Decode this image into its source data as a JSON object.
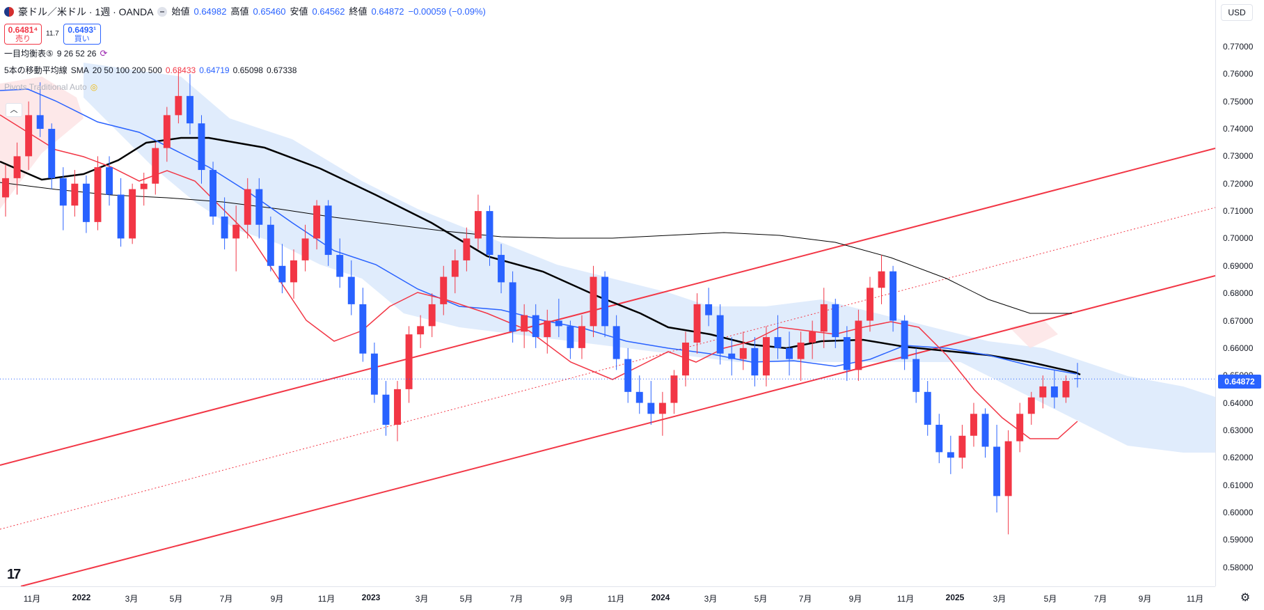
{
  "header": {
    "symbol_title": "豪ドル／米ドル · 1週 · OANDA",
    "ohlc": [
      {
        "label": "始値",
        "value": "0.64982"
      },
      {
        "label": "高値",
        "value": "0.65460"
      },
      {
        "label": "安値",
        "value": "0.64562"
      },
      {
        "label": "終値",
        "value": "0.64872"
      }
    ],
    "change": "−0.00059 (−0.09%)"
  },
  "trade": {
    "sell_price": "0.6481⁴",
    "sell_label": "売り",
    "spread": "11.7",
    "buy_price": "0.6493¹",
    "buy_label": "買い"
  },
  "indicators": {
    "ichimoku": {
      "name": "一目均衡表⑤",
      "params": "9 26 52 26"
    },
    "sma": {
      "name": "5本の移動平均線",
      "type": "SMA",
      "periods": "20 50 100 200 500",
      "v1": "0.63433",
      "v2": "0.64719",
      "v3": "0.65098",
      "v4": "0.67338"
    },
    "pivots": {
      "name": "Pivots Traditional Auto"
    }
  },
  "price_scale": {
    "currency": "USD",
    "last_price": "0.64872",
    "ticks": [
      "0.77000",
      "0.76000",
      "0.75000",
      "0.74000",
      "0.73000",
      "0.72000",
      "0.71000",
      "0.70000",
      "0.69000",
      "0.68000",
      "0.67000",
      "0.66000",
      "0.65000",
      "0.64000",
      "0.63000",
      "0.62000",
      "0.61000",
      "0.60000",
      "0.59000",
      "0.58000"
    ]
  },
  "time_scale": {
    "labels": [
      {
        "t": "11月",
        "year": false
      },
      {
        "t": "2022",
        "year": true
      },
      {
        "t": "3月",
        "year": false
      },
      {
        "t": "5月",
        "year": false
      },
      {
        "t": "7月",
        "year": false
      },
      {
        "t": "9月",
        "year": false
      },
      {
        "t": "11月",
        "year": false
      },
      {
        "t": "2023",
        "year": true
      },
      {
        "t": "3月",
        "year": false
      },
      {
        "t": "5月",
        "year": false
      },
      {
        "t": "7月",
        "year": false
      },
      {
        "t": "9月",
        "year": false
      },
      {
        "t": "11月",
        "year": false
      },
      {
        "t": "2024",
        "year": true
      },
      {
        "t": "3月",
        "year": false
      },
      {
        "t": "5月",
        "year": false
      },
      {
        "t": "7月",
        "year": false
      },
      {
        "t": "9月",
        "year": false
      },
      {
        "t": "11月",
        "year": false
      },
      {
        "t": "2025",
        "year": true
      },
      {
        "t": "3月",
        "year": false
      },
      {
        "t": "5月",
        "year": false
      },
      {
        "t": "7月",
        "year": false
      },
      {
        "t": "9月",
        "year": false
      },
      {
        "t": "11月",
        "year": false
      }
    ]
  },
  "colors": {
    "up": "#f23645",
    "down": "#2962ff",
    "sma20": "#f23645",
    "sma50": "#2962ff",
    "sma100": "#000000",
    "sma200": "#000000",
    "channel": "#f23645",
    "kumo_bull": "#d6e6fb",
    "kumo_bear": "#fde2e4"
  },
  "chart_data": {
    "type": "candlestick",
    "timeframe": "1週",
    "symbol": "豪ドル／米ドル",
    "ylim": [
      0.575,
      0.777
    ],
    "x_range": [
      "2021-10",
      "2025-12"
    ],
    "ohlc_weekly_approx": [
      [
        0.715,
        0.727,
        0.708,
        0.722
      ],
      [
        0.722,
        0.735,
        0.716,
        0.73
      ],
      [
        0.73,
        0.75,
        0.725,
        0.745
      ],
      [
        0.745,
        0.757,
        0.737,
        0.74
      ],
      [
        0.74,
        0.742,
        0.718,
        0.722
      ],
      [
        0.722,
        0.726,
        0.703,
        0.712
      ],
      [
        0.712,
        0.725,
        0.708,
        0.72
      ],
      [
        0.72,
        0.723,
        0.702,
        0.706
      ],
      [
        0.706,
        0.73,
        0.703,
        0.726
      ],
      [
        0.726,
        0.73,
        0.712,
        0.716
      ],
      [
        0.716,
        0.722,
        0.697,
        0.7
      ],
      [
        0.7,
        0.72,
        0.698,
        0.718
      ],
      [
        0.718,
        0.724,
        0.712,
        0.72
      ],
      [
        0.72,
        0.735,
        0.716,
        0.733
      ],
      [
        0.733,
        0.748,
        0.728,
        0.745
      ],
      [
        0.745,
        0.762,
        0.742,
        0.752
      ],
      [
        0.752,
        0.76,
        0.738,
        0.742
      ],
      [
        0.742,
        0.745,
        0.72,
        0.725
      ],
      [
        0.725,
        0.728,
        0.705,
        0.708
      ],
      [
        0.708,
        0.715,
        0.696,
        0.7
      ],
      [
        0.7,
        0.712,
        0.688,
        0.705
      ],
      [
        0.705,
        0.722,
        0.7,
        0.718
      ],
      [
        0.718,
        0.722,
        0.7,
        0.705
      ],
      [
        0.705,
        0.708,
        0.688,
        0.69
      ],
      [
        0.69,
        0.698,
        0.68,
        0.684
      ],
      [
        0.684,
        0.696,
        0.678,
        0.692
      ],
      [
        0.692,
        0.705,
        0.688,
        0.7
      ],
      [
        0.7,
        0.714,
        0.696,
        0.712
      ],
      [
        0.712,
        0.714,
        0.69,
        0.694
      ],
      [
        0.694,
        0.7,
        0.682,
        0.686
      ],
      [
        0.686,
        0.692,
        0.672,
        0.676
      ],
      [
        0.676,
        0.682,
        0.655,
        0.658
      ],
      [
        0.658,
        0.662,
        0.64,
        0.643
      ],
      [
        0.643,
        0.648,
        0.628,
        0.632
      ],
      [
        0.632,
        0.648,
        0.626,
        0.645
      ],
      [
        0.645,
        0.668,
        0.64,
        0.665
      ],
      [
        0.665,
        0.672,
        0.66,
        0.668
      ],
      [
        0.668,
        0.68,
        0.664,
        0.676
      ],
      [
        0.676,
        0.69,
        0.672,
        0.686
      ],
      [
        0.686,
        0.696,
        0.68,
        0.692
      ],
      [
        0.692,
        0.704,
        0.688,
        0.7
      ],
      [
        0.7,
        0.716,
        0.696,
        0.71
      ],
      [
        0.71,
        0.712,
        0.69,
        0.694
      ],
      [
        0.694,
        0.698,
        0.68,
        0.684
      ],
      [
        0.684,
        0.688,
        0.662,
        0.666
      ],
      [
        0.666,
        0.676,
        0.66,
        0.672
      ],
      [
        0.672,
        0.676,
        0.66,
        0.664
      ],
      [
        0.664,
        0.674,
        0.658,
        0.67
      ],
      [
        0.67,
        0.678,
        0.664,
        0.668
      ],
      [
        0.668,
        0.67,
        0.656,
        0.66
      ],
      [
        0.66,
        0.672,
        0.656,
        0.668
      ],
      [
        0.668,
        0.69,
        0.664,
        0.686
      ],
      [
        0.686,
        0.688,
        0.664,
        0.668
      ],
      [
        0.668,
        0.672,
        0.652,
        0.656
      ],
      [
        0.656,
        0.66,
        0.64,
        0.644
      ],
      [
        0.644,
        0.65,
        0.636,
        0.64
      ],
      [
        0.64,
        0.648,
        0.632,
        0.636
      ],
      [
        0.636,
        0.644,
        0.628,
        0.64
      ],
      [
        0.64,
        0.652,
        0.636,
        0.65
      ],
      [
        0.65,
        0.666,
        0.646,
        0.662
      ],
      [
        0.662,
        0.68,
        0.658,
        0.676
      ],
      [
        0.676,
        0.682,
        0.668,
        0.672
      ],
      [
        0.672,
        0.676,
        0.654,
        0.658
      ],
      [
        0.658,
        0.664,
        0.65,
        0.656
      ],
      [
        0.656,
        0.666,
        0.652,
        0.66
      ],
      [
        0.66,
        0.664,
        0.646,
        0.65
      ],
      [
        0.65,
        0.668,
        0.646,
        0.664
      ],
      [
        0.664,
        0.672,
        0.656,
        0.66
      ],
      [
        0.66,
        0.666,
        0.65,
        0.656
      ],
      [
        0.656,
        0.666,
        0.648,
        0.662
      ],
      [
        0.662,
        0.67,
        0.656,
        0.666
      ],
      [
        0.666,
        0.682,
        0.66,
        0.676
      ],
      [
        0.676,
        0.678,
        0.66,
        0.664
      ],
      [
        0.664,
        0.668,
        0.648,
        0.652
      ],
      [
        0.652,
        0.674,
        0.648,
        0.67
      ],
      [
        0.67,
        0.686,
        0.666,
        0.682
      ],
      [
        0.682,
        0.694,
        0.676,
        0.688
      ],
      [
        0.688,
        0.69,
        0.666,
        0.67
      ],
      [
        0.67,
        0.672,
        0.652,
        0.656
      ],
      [
        0.656,
        0.66,
        0.64,
        0.644
      ],
      [
        0.644,
        0.648,
        0.628,
        0.632
      ],
      [
        0.632,
        0.636,
        0.618,
        0.622
      ],
      [
        0.622,
        0.628,
        0.614,
        0.62
      ],
      [
        0.62,
        0.632,
        0.616,
        0.628
      ],
      [
        0.628,
        0.64,
        0.624,
        0.636
      ],
      [
        0.636,
        0.638,
        0.62,
        0.624
      ],
      [
        0.624,
        0.632,
        0.6,
        0.606
      ],
      [
        0.606,
        0.63,
        0.592,
        0.626
      ],
      [
        0.626,
        0.64,
        0.622,
        0.636
      ],
      [
        0.636,
        0.644,
        0.632,
        0.642
      ],
      [
        0.642,
        0.65,
        0.638,
        0.646
      ],
      [
        0.646,
        0.652,
        0.638,
        0.642
      ],
      [
        0.642,
        0.65,
        0.64,
        0.648
      ],
      [
        0.649,
        0.6546,
        0.6456,
        0.6487
      ]
    ]
  }
}
